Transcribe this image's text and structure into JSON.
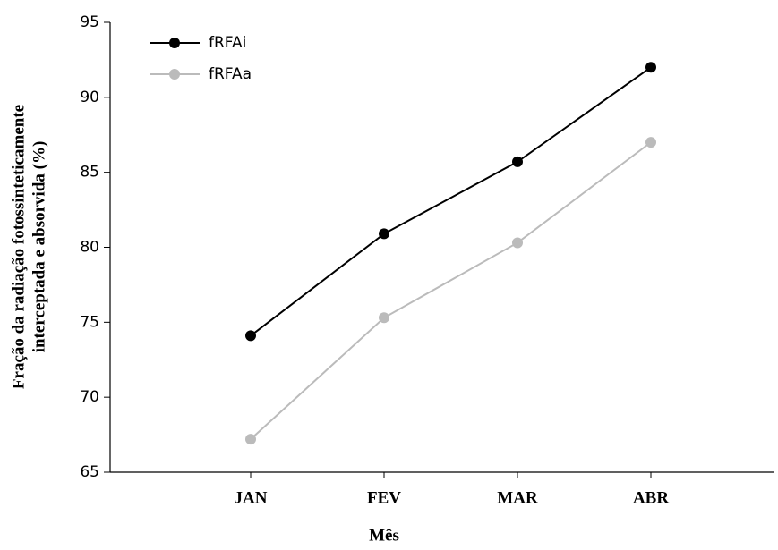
{
  "chart_data": {
    "type": "line",
    "xlabel": "Mês",
    "ylabel": [
      "Fração da radiação fotossinteticamente",
      "interceptada e absorvida (%)"
    ],
    "categories": [
      "JAN",
      "FEV",
      "MAR",
      "ABR"
    ],
    "series": [
      {
        "name": "fRFAi",
        "color": "#000000",
        "values": [
          74.1,
          80.9,
          85.7,
          92.0
        ]
      },
      {
        "name": "fRFAa",
        "color": "#bbbbbb",
        "values": [
          67.2,
          75.3,
          80.3,
          87.0
        ]
      }
    ],
    "ylim": [
      65,
      95
    ],
    "yticks": [
      65,
      70,
      75,
      80,
      85,
      90,
      95
    ],
    "legend": "upper-left"
  }
}
